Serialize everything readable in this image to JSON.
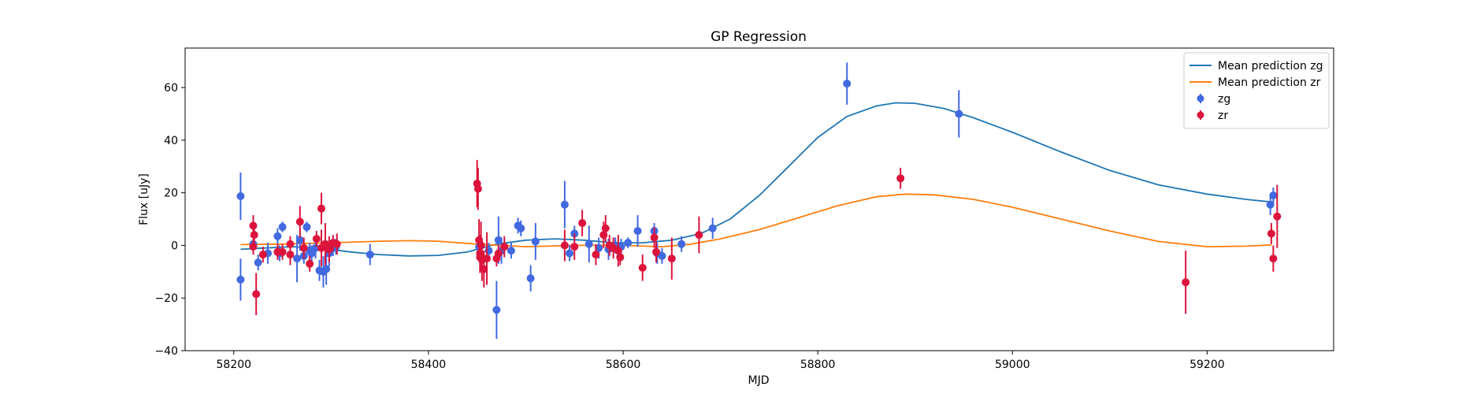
{
  "chart_data": {
    "type": "scatter",
    "title": "GP Regression",
    "xlabel": "MJD",
    "ylabel": "Flux [uJy]",
    "xlim": [
      58150,
      59330
    ],
    "ylim": [
      -40,
      75
    ],
    "xticks": [
      58200,
      58400,
      58600,
      58800,
      59000,
      59200
    ],
    "yticks": [
      -40,
      -20,
      0,
      20,
      40,
      60
    ],
    "grid": false,
    "legend_position": "top-right",
    "colors": {
      "zg_points": "#4169e1",
      "zr_points": "#dc143c",
      "zg_line": "#1f77b4",
      "zr_line": "#ff7f0e"
    },
    "legend": [
      {
        "label": "Mean prediction zg",
        "kind": "line",
        "color": "#1f77b4"
      },
      {
        "label": "Mean prediction zr",
        "kind": "line",
        "color": "#ff7f0e"
      },
      {
        "label": "zg",
        "kind": "errorbar",
        "color": "#4169e1"
      },
      {
        "label": "zr",
        "kind": "errorbar",
        "color": "#dc143c"
      }
    ],
    "series": [
      {
        "name": "Mean prediction zg",
        "kind": "line",
        "color": "#1f77b4",
        "x": [
          58207,
          58230,
          58260,
          58290,
          58320,
          58350,
          58380,
          58410,
          58440,
          58470,
          58500,
          58530,
          58560,
          58590,
          58620,
          58650,
          58680,
          58710,
          58740,
          58770,
          58800,
          58830,
          58860,
          58880,
          58900,
          58930,
          58960,
          59000,
          59050,
          59100,
          59150,
          59200,
          59240,
          59266
        ],
        "y": [
          -1.5,
          -1.0,
          -0.5,
          -1.0,
          -2.5,
          -3.5,
          -4.0,
          -3.8,
          -2.5,
          0.5,
          2.0,
          2.5,
          2.0,
          1.0,
          1.0,
          2.0,
          4.5,
          10.0,
          19.0,
          30.0,
          41.0,
          49.0,
          53.0,
          54.2,
          54.0,
          52.0,
          48.5,
          43.0,
          35.5,
          28.5,
          23.0,
          19.5,
          17.5,
          16.5
        ]
      },
      {
        "name": "Mean prediction zr",
        "kind": "line",
        "color": "#ff7f0e",
        "x": [
          58207,
          58250,
          58300,
          58350,
          58380,
          58410,
          58450,
          58500,
          58550,
          58600,
          58640,
          58670,
          58700,
          58740,
          58780,
          58820,
          58860,
          58890,
          58920,
          58960,
          59000,
          59050,
          59100,
          59150,
          59200,
          59240,
          59266
        ],
        "y": [
          0.3,
          0.5,
          1.0,
          1.6,
          1.8,
          1.6,
          0.5,
          -0.5,
          0,
          0,
          -0.5,
          0.5,
          2.5,
          6.0,
          10.5,
          15.0,
          18.5,
          19.5,
          19.2,
          17.5,
          14.5,
          10.0,
          5.5,
          1.5,
          -0.5,
          -0.3,
          0.2
        ]
      },
      {
        "name": "zg",
        "kind": "errorbar",
        "color": "#4169e1",
        "x": [
          58207,
          58207,
          58220,
          58225,
          58235,
          58245,
          58247,
          58250,
          58265,
          58268,
          58272,
          58275,
          58278,
          58280,
          58284,
          58288,
          58292,
          58295,
          58298,
          58302,
          58305,
          58340,
          58452,
          58462,
          58470,
          58472,
          58475,
          58485,
          58492,
          58495,
          58505,
          58510,
          58540,
          58545,
          58550,
          58565,
          58575,
          58585,
          58592,
          58598,
          58605,
          58615,
          58632,
          58635,
          58640,
          58660,
          58692,
          58830,
          58945,
          59265,
          59268
        ],
        "y": [
          18.7,
          -13.0,
          0.5,
          -6.5,
          -3.0,
          3.5,
          -3.0,
          7.0,
          -5.0,
          2.0,
          -4.0,
          7.0,
          -2.0,
          -3.0,
          -1.0,
          -9.5,
          -10.0,
          -9.0,
          -3.0,
          -1.0,
          -0.5,
          -3.5,
          -0.5,
          -2.0,
          -24.5,
          2.0,
          -2.0,
          -2.0,
          7.5,
          6.5,
          -12.5,
          1.5,
          15.5,
          -3.0,
          4.5,
          0.5,
          -1.0,
          -1.5,
          0,
          -0.5,
          1.0,
          5.5,
          5.5,
          -3.0,
          -4.0,
          0.5,
          6.5,
          61.5,
          50.0,
          15.5,
          19.0
        ],
        "yerr": [
          9,
          8,
          2,
          3,
          4,
          3,
          3,
          2,
          9,
          4,
          3,
          2,
          3,
          3,
          4,
          4,
          6,
          6,
          5,
          3,
          3,
          4,
          4,
          3,
          11,
          9,
          5,
          3,
          3,
          3,
          5,
          7,
          9,
          3,
          3,
          7,
          4,
          4,
          3,
          3,
          2,
          6,
          3,
          4,
          3,
          3,
          4,
          8,
          9,
          4,
          3
        ]
      },
      {
        "name": "zr",
        "kind": "errorbar",
        "color": "#dc143c",
        "x": [
          58220,
          58221,
          58220,
          58223,
          58230,
          58245,
          58250,
          58258,
          58258,
          58268,
          58272,
          58278,
          58285,
          58290,
          58290,
          58294,
          58298,
          58302,
          58306,
          58450,
          58451,
          58452,
          58453,
          58453,
          58454,
          58455,
          58457,
          58460,
          58470,
          58472,
          58478,
          58540,
          58550,
          58558,
          58572,
          58580,
          58582,
          58586,
          58590,
          58595,
          58597,
          58620,
          58632,
          58634,
          58650,
          58678,
          58885,
          59178,
          59266,
          59268,
          59272
        ],
        "y": [
          7.5,
          4.0,
          -0.5,
          -18.5,
          -3.5,
          -2.5,
          -2.5,
          0.5,
          -3.5,
          9.0,
          -1.0,
          -7.0,
          2.5,
          14.0,
          -1.0,
          0.5,
          -1.5,
          1.0,
          0.5,
          23.5,
          21.5,
          2.0,
          -3.0,
          -4.5,
          0,
          -5.5,
          -9.0,
          -5.0,
          -5.0,
          -3.0,
          -0.5,
          0,
          -0.5,
          8.5,
          -3.5,
          4.0,
          6.5,
          0,
          -1.0,
          -2.0,
          -4.5,
          -8.5,
          3.0,
          -2.5,
          -5.0,
          4.0,
          25.5,
          -14.0,
          4.5,
          -5.0,
          11.0
        ],
        "yerr": [
          4,
          3,
          3,
          8,
          3,
          3,
          3,
          3,
          4,
          6,
          4,
          3,
          3,
          6,
          7,
          8,
          5,
          3,
          4,
          9,
          8,
          8,
          7,
          6,
          9,
          8,
          7,
          10,
          3,
          3,
          4,
          6,
          5,
          5,
          4,
          5,
          5,
          4,
          4,
          6,
          3,
          5,
          4,
          4,
          8,
          7,
          4,
          12,
          4,
          5,
          12
        ]
      }
    ]
  }
}
